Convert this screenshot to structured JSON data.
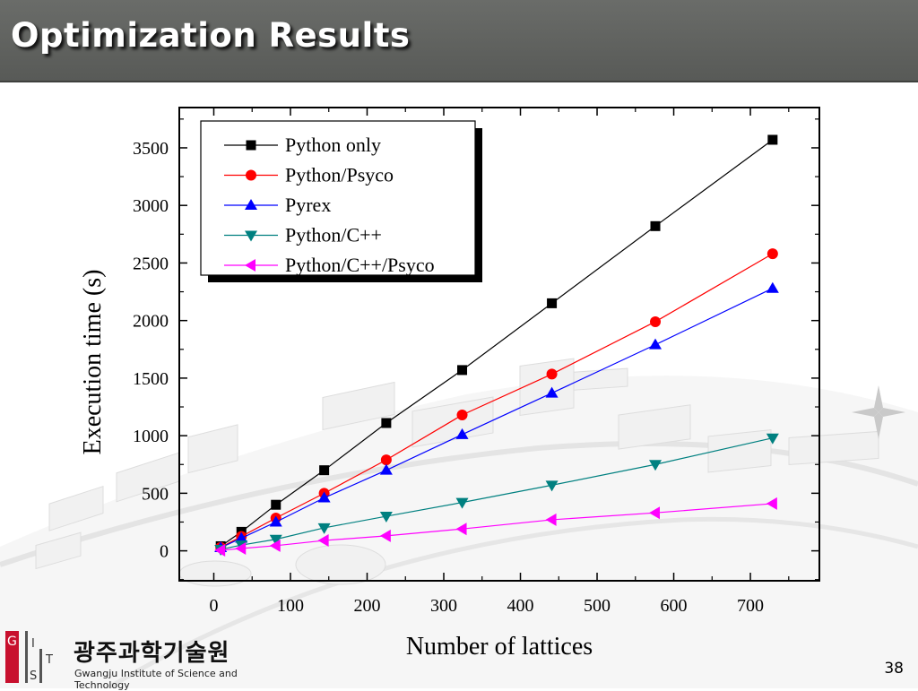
{
  "slide": {
    "title": "Optimization Results",
    "page_number": "38"
  },
  "logo": {
    "letters": [
      "G",
      "I",
      "S",
      "T"
    ],
    "korean": "광주과학기술원",
    "english": "Gwangju Institute of Science and Technology"
  },
  "colors": {
    "title_bar": "#5f615e",
    "title_text": "#ffffff",
    "logo_red": "#c8102e"
  },
  "chart_data": {
    "type": "line",
    "xlabel": "Number of lattices",
    "ylabel": "Execution time (s)",
    "xlim": [
      -45,
      790
    ],
    "ylim": [
      -260,
      3850
    ],
    "x_ticks": [
      0,
      100,
      200,
      300,
      400,
      500,
      600,
      700
    ],
    "y_ticks": [
      0,
      500,
      1000,
      1500,
      2000,
      2500,
      3000,
      3500
    ],
    "grid": false,
    "legend": {
      "position": "top-left"
    },
    "x": [
      9,
      36,
      81,
      144,
      225,
      324,
      441,
      576,
      729
    ],
    "series": [
      {
        "name": "Python only",
        "color": "#000000",
        "marker": "square",
        "values": [
          40,
          165,
          400,
          700,
          1110,
          1570,
          2150,
          2820,
          3570
        ]
      },
      {
        "name": "Python/Psyco",
        "color": "#ff0000",
        "marker": "circle",
        "values": [
          30,
          125,
          285,
          500,
          790,
          1180,
          1535,
          1990,
          2580
        ]
      },
      {
        "name": "Pyrex",
        "color": "#0000ff",
        "marker": "triangle-up",
        "values": [
          28,
          110,
          250,
          460,
          700,
          1010,
          1370,
          1790,
          2280
        ]
      },
      {
        "name": "Python/C++",
        "color": "#008080",
        "marker": "triangle-down",
        "values": [
          12,
          50,
          100,
          200,
          300,
          420,
          570,
          750,
          980
        ]
      },
      {
        "name": "Python/C++/Psyco",
        "color": "#ff00ff",
        "marker": "triangle-left",
        "values": [
          5,
          20,
          45,
          90,
          130,
          190,
          270,
          330,
          410
        ]
      }
    ]
  }
}
